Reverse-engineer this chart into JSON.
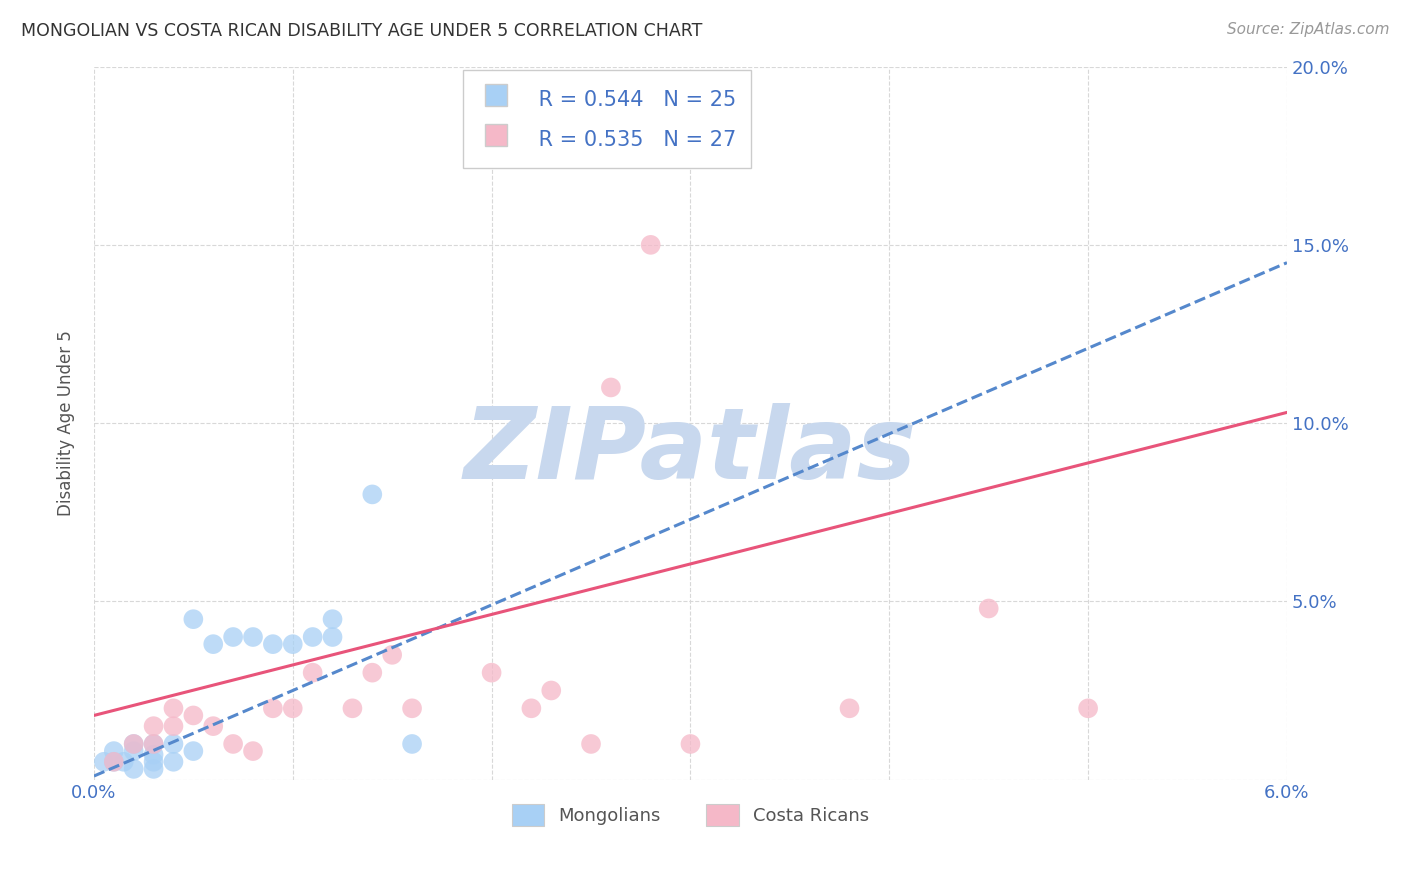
{
  "title": "MONGOLIAN VS COSTA RICAN DISABILITY AGE UNDER 5 CORRELATION CHART",
  "source": "Source: ZipAtlas.com",
  "ylabel": "Disability Age Under 5",
  "xlabel_mongolians": "Mongolians",
  "xlabel_costa_ricans": "Costa Ricans",
  "mongolian_R": "0.544",
  "mongolian_N": "25",
  "costa_rican_R": "0.535",
  "costa_rican_N": "27",
  "mongolian_color": "#a8d0f5",
  "mongolian_line_color": "#5588cc",
  "mongolian_line_style": "--",
  "costa_rican_color": "#f5b8c8",
  "costa_rican_line_color": "#e8547a",
  "costa_rican_line_style": "-",
  "background_color": "#ffffff",
  "grid_color": "#d8d8d8",
  "watermark_text": "ZIPatlas",
  "watermark_color": "#c8d8ee",
  "xlim": [
    0.0,
    0.06
  ],
  "ylim": [
    0.0,
    0.2
  ],
  "mongolian_x": [
    0.0005,
    0.001,
    0.001,
    0.0015,
    0.002,
    0.002,
    0.002,
    0.003,
    0.003,
    0.003,
    0.003,
    0.004,
    0.004,
    0.005,
    0.005,
    0.006,
    0.007,
    0.008,
    0.009,
    0.01,
    0.011,
    0.012,
    0.012,
    0.014,
    0.016
  ],
  "mongolian_y": [
    0.005,
    0.005,
    0.008,
    0.005,
    0.003,
    0.008,
    0.01,
    0.003,
    0.005,
    0.007,
    0.01,
    0.005,
    0.01,
    0.008,
    0.045,
    0.038,
    0.04,
    0.04,
    0.038,
    0.038,
    0.04,
    0.04,
    0.045,
    0.08,
    0.01
  ],
  "costa_rican_x": [
    0.001,
    0.002,
    0.003,
    0.003,
    0.004,
    0.004,
    0.005,
    0.006,
    0.007,
    0.008,
    0.009,
    0.01,
    0.011,
    0.013,
    0.014,
    0.015,
    0.016,
    0.02,
    0.022,
    0.023,
    0.025,
    0.026,
    0.028,
    0.03,
    0.038,
    0.045,
    0.05
  ],
  "costa_rican_y": [
    0.005,
    0.01,
    0.01,
    0.015,
    0.015,
    0.02,
    0.018,
    0.015,
    0.01,
    0.008,
    0.02,
    0.02,
    0.03,
    0.02,
    0.03,
    0.035,
    0.02,
    0.03,
    0.02,
    0.025,
    0.01,
    0.11,
    0.15,
    0.01,
    0.02,
    0.048,
    0.02
  ],
  "mongolian_line_x": [
    0.0,
    0.06
  ],
  "mongolian_line_y": [
    0.001,
    0.145
  ],
  "costa_rican_line_x": [
    0.0,
    0.06
  ],
  "costa_rican_line_y": [
    0.018,
    0.103
  ]
}
